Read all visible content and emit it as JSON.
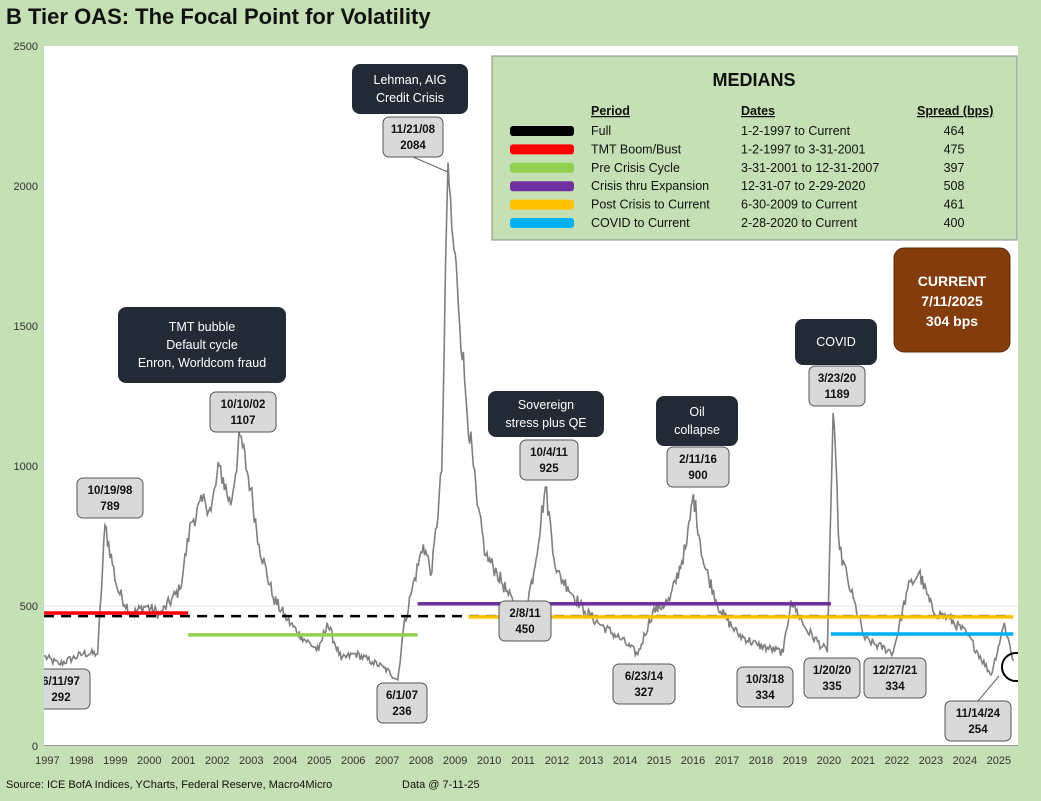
{
  "title": "B Tier OAS: The Focal Point for Volatility",
  "footer": {
    "source": "Source: ICE BofA Indices, YCharts, Federal Reserve, Macro4Micro",
    "as_of": "Data @ 7-11-25"
  },
  "colors": {
    "background": "#c5e0b4",
    "plot": "#ffffff",
    "series": "#7f7f7f",
    "full": "#000000",
    "tmt": "#ff0000",
    "precrisis": "#92d050",
    "crisis": "#7030a0",
    "post": "#ffc000",
    "covid": "#00b0f0",
    "current_box": "#843c0c"
  },
  "chart_data": {
    "type": "line",
    "ylim": [
      0,
      2500
    ],
    "yticks": [
      0,
      500,
      1000,
      1500,
      2000,
      2500
    ],
    "xlim": [
      "1997-01-01",
      "2025-08-31"
    ],
    "xticks": [
      "1997",
      "1998",
      "1999",
      "2000",
      "2001",
      "2002",
      "2003",
      "2004",
      "2005",
      "2006",
      "2007",
      "2008",
      "2009",
      "2010",
      "2011",
      "2012",
      "2013",
      "2014",
      "2015",
      "2016",
      "2017",
      "2018",
      "2019",
      "2020",
      "2021",
      "2022",
      "2023",
      "2024",
      "2025"
    ],
    "series": [
      {
        "x": [
          "1997-01-02",
          "1997-06-11",
          "1998-03-01",
          "1998-08-01",
          "1998-10-19",
          "1999-03-01",
          "1999-08-01",
          "2000-01-01",
          "2000-06-01",
          "2001-01-01",
          "2001-05-01",
          "2001-09-25",
          "2001-12-01",
          "2002-03-01",
          "2002-07-01",
          "2002-10-10",
          "2003-02-01",
          "2003-05-01",
          "2003-10-01",
          "2004-03-01",
          "2004-08-01",
          "2005-02-01",
          "2005-05-01",
          "2005-10-01",
          "2006-03-01",
          "2006-09-01",
          "2007-01-01",
          "2007-06-01",
          "2007-08-01",
          "2007-11-01",
          "2008-03-01",
          "2008-06-01",
          "2008-09-15",
          "2008-11-21",
          "2009-01-01",
          "2009-03-01",
          "2009-06-01",
          "2009-10-01",
          "2010-01-01",
          "2010-05-01",
          "2010-09-01",
          "2011-02-08",
          "2011-06-01",
          "2011-10-04",
          "2012-02-01",
          "2012-06-01",
          "2012-12-01",
          "2013-06-01",
          "2014-01-01",
          "2014-06-23",
          "2014-12-01",
          "2015-06-01",
          "2015-12-01",
          "2016-02-11",
          "2016-06-01",
          "2016-12-01",
          "2017-06-01",
          "2018-01-01",
          "2018-10-03",
          "2018-12-25",
          "2019-06-01",
          "2020-01-20",
          "2020-03-23",
          "2020-06-01",
          "2020-10-01",
          "2021-03-01",
          "2021-12-27",
          "2022-06-01",
          "2022-10-01",
          "2023-03-01",
          "2023-08-01",
          "2024-03-01",
          "2024-11-14",
          "2025-04-07",
          "2025-07-11"
        ],
        "values": [
          320,
          292,
          330,
          330,
          789,
          560,
          470,
          500,
          470,
          560,
          800,
          880,
          840,
          1000,
          860,
          1107,
          920,
          720,
          530,
          450,
          390,
          340,
          440,
          310,
          330,
          300,
          280,
          236,
          420,
          560,
          720,
          620,
          980,
          2084,
          1850,
          1650,
          1250,
          860,
          680,
          620,
          540,
          450,
          620,
          925,
          620,
          570,
          480,
          430,
          380,
          327,
          480,
          520,
          720,
          900,
          650,
          480,
          400,
          360,
          334,
          520,
          420,
          335,
          1189,
          700,
          550,
          380,
          334,
          560,
          620,
          480,
          460,
          400,
          254,
          440,
          304
        ]
      }
    ],
    "medians": {
      "title": "MEDIANS",
      "headers": [
        "Period",
        "Dates",
        "Spread (bps)"
      ],
      "rows": [
        {
          "period": "Full",
          "dates": "1-2-1997 to Current",
          "spread": "464",
          "color": "#000000",
          "value": 464,
          "start": "1997-01-02",
          "end": "2025-07-11",
          "dashed": true
        },
        {
          "period": "TMT Boom/Bust",
          "dates": "1-2-1997 to 3-31-2001",
          "spread": "475",
          "color": "#ff0000",
          "value": 475,
          "start": "1997-01-02",
          "end": "2001-03-31",
          "dashed": false
        },
        {
          "period": "Pre Crisis Cycle",
          "dates": "3-31-2001  to 12-31-2007",
          "spread": "397",
          "color": "#92d050",
          "value": 397,
          "start": "2001-03-31",
          "end": "2007-12-31",
          "dashed": false
        },
        {
          "period": "Crisis thru Expansion",
          "dates": "12-31-07 to 2-29-2020",
          "spread": "508",
          "color": "#7030a0",
          "value": 508,
          "start": "2007-12-31",
          "end": "2020-02-29",
          "dashed": false
        },
        {
          "period": "Post Crisis to Current",
          "dates": "6-30-2009  to Current",
          "spread": "461",
          "color": "#ffc000",
          "value": 461,
          "start": "2009-06-30",
          "end": "2025-07-11",
          "dashed": false
        },
        {
          "period": "COVID to Current",
          "dates": "2-28-2020  to Current",
          "spread": "400",
          "color": "#00b0f0",
          "value": 400,
          "start": "2020-02-28",
          "end": "2025-07-11",
          "dashed": false
        }
      ]
    },
    "current": {
      "label": "CURRENT",
      "date": "7/11/2025",
      "value": "304 bps"
    },
    "callouts": [
      {
        "lines": [
          "Lehman, AIG",
          "Credit Crisis"
        ]
      },
      {
        "lines": [
          "TMT bubble",
          "Default cycle",
          "Enron, Worldcom fraud"
        ]
      },
      {
        "lines": [
          "Sovereign",
          "stress plus QE"
        ]
      },
      {
        "lines": [
          "Oil",
          "collapse"
        ]
      },
      {
        "lines": [
          "COVID"
        ]
      }
    ],
    "annotations": [
      {
        "date": "6/11/97",
        "value": "292"
      },
      {
        "date": "10/19/98",
        "value": "789"
      },
      {
        "date": "10/10/02",
        "value": "1107"
      },
      {
        "date": "6/1/07",
        "value": "236"
      },
      {
        "date": "11/21/08",
        "value": "2084"
      },
      {
        "date": "2/8/11",
        "value": "450"
      },
      {
        "date": "10/4/11",
        "value": "925"
      },
      {
        "date": "6/23/14",
        "value": "327"
      },
      {
        "date": "2/11/16",
        "value": "900"
      },
      {
        "date": "10/3/18",
        "value": "334"
      },
      {
        "date": "1/20/20",
        "value": "335"
      },
      {
        "date": "3/23/20",
        "value": "1189"
      },
      {
        "date": "12/27/21",
        "value": "334"
      },
      {
        "date": "11/14/24",
        "value": "254"
      }
    ]
  }
}
